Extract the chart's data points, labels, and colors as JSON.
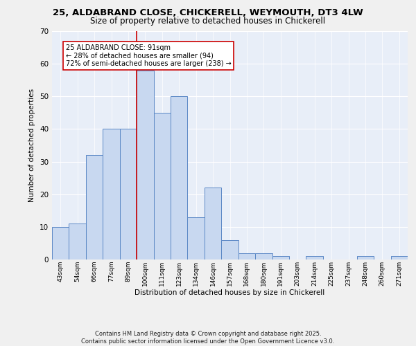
{
  "title1": "25, ALDABRAND CLOSE, CHICKERELL, WEYMOUTH, DT3 4LW",
  "title2": "Size of property relative to detached houses in Chickerell",
  "xlabel": "Distribution of detached houses by size in Chickerell",
  "ylabel": "Number of detached properties",
  "categories": [
    "43sqm",
    "54sqm",
    "66sqm",
    "77sqm",
    "89sqm",
    "100sqm",
    "111sqm",
    "123sqm",
    "134sqm",
    "146sqm",
    "157sqm",
    "168sqm",
    "180sqm",
    "191sqm",
    "203sqm",
    "214sqm",
    "225sqm",
    "237sqm",
    "248sqm",
    "260sqm",
    "271sqm"
  ],
  "values": [
    10,
    11,
    32,
    40,
    40,
    58,
    45,
    50,
    13,
    22,
    6,
    2,
    2,
    1,
    0,
    1,
    0,
    0,
    1,
    0,
    1
  ],
  "bar_color": "#c8d8f0",
  "bar_edge_color": "#5a87c5",
  "vline_x": 4.5,
  "vline_color": "#cc0000",
  "annotation_text": "25 ALDABRAND CLOSE: 91sqm\n← 28% of detached houses are smaller (94)\n72% of semi-detached houses are larger (238) →",
  "annotation_box_color": "#ffffff",
  "annotation_box_edge": "#cc0000",
  "ylim": [
    0,
    70
  ],
  "yticks": [
    0,
    10,
    20,
    30,
    40,
    50,
    60,
    70
  ],
  "background_color": "#e8eef8",
  "fig_background": "#f0f0f0",
  "footer": "Contains HM Land Registry data © Crown copyright and database right 2025.\nContains public sector information licensed under the Open Government Licence v3.0."
}
